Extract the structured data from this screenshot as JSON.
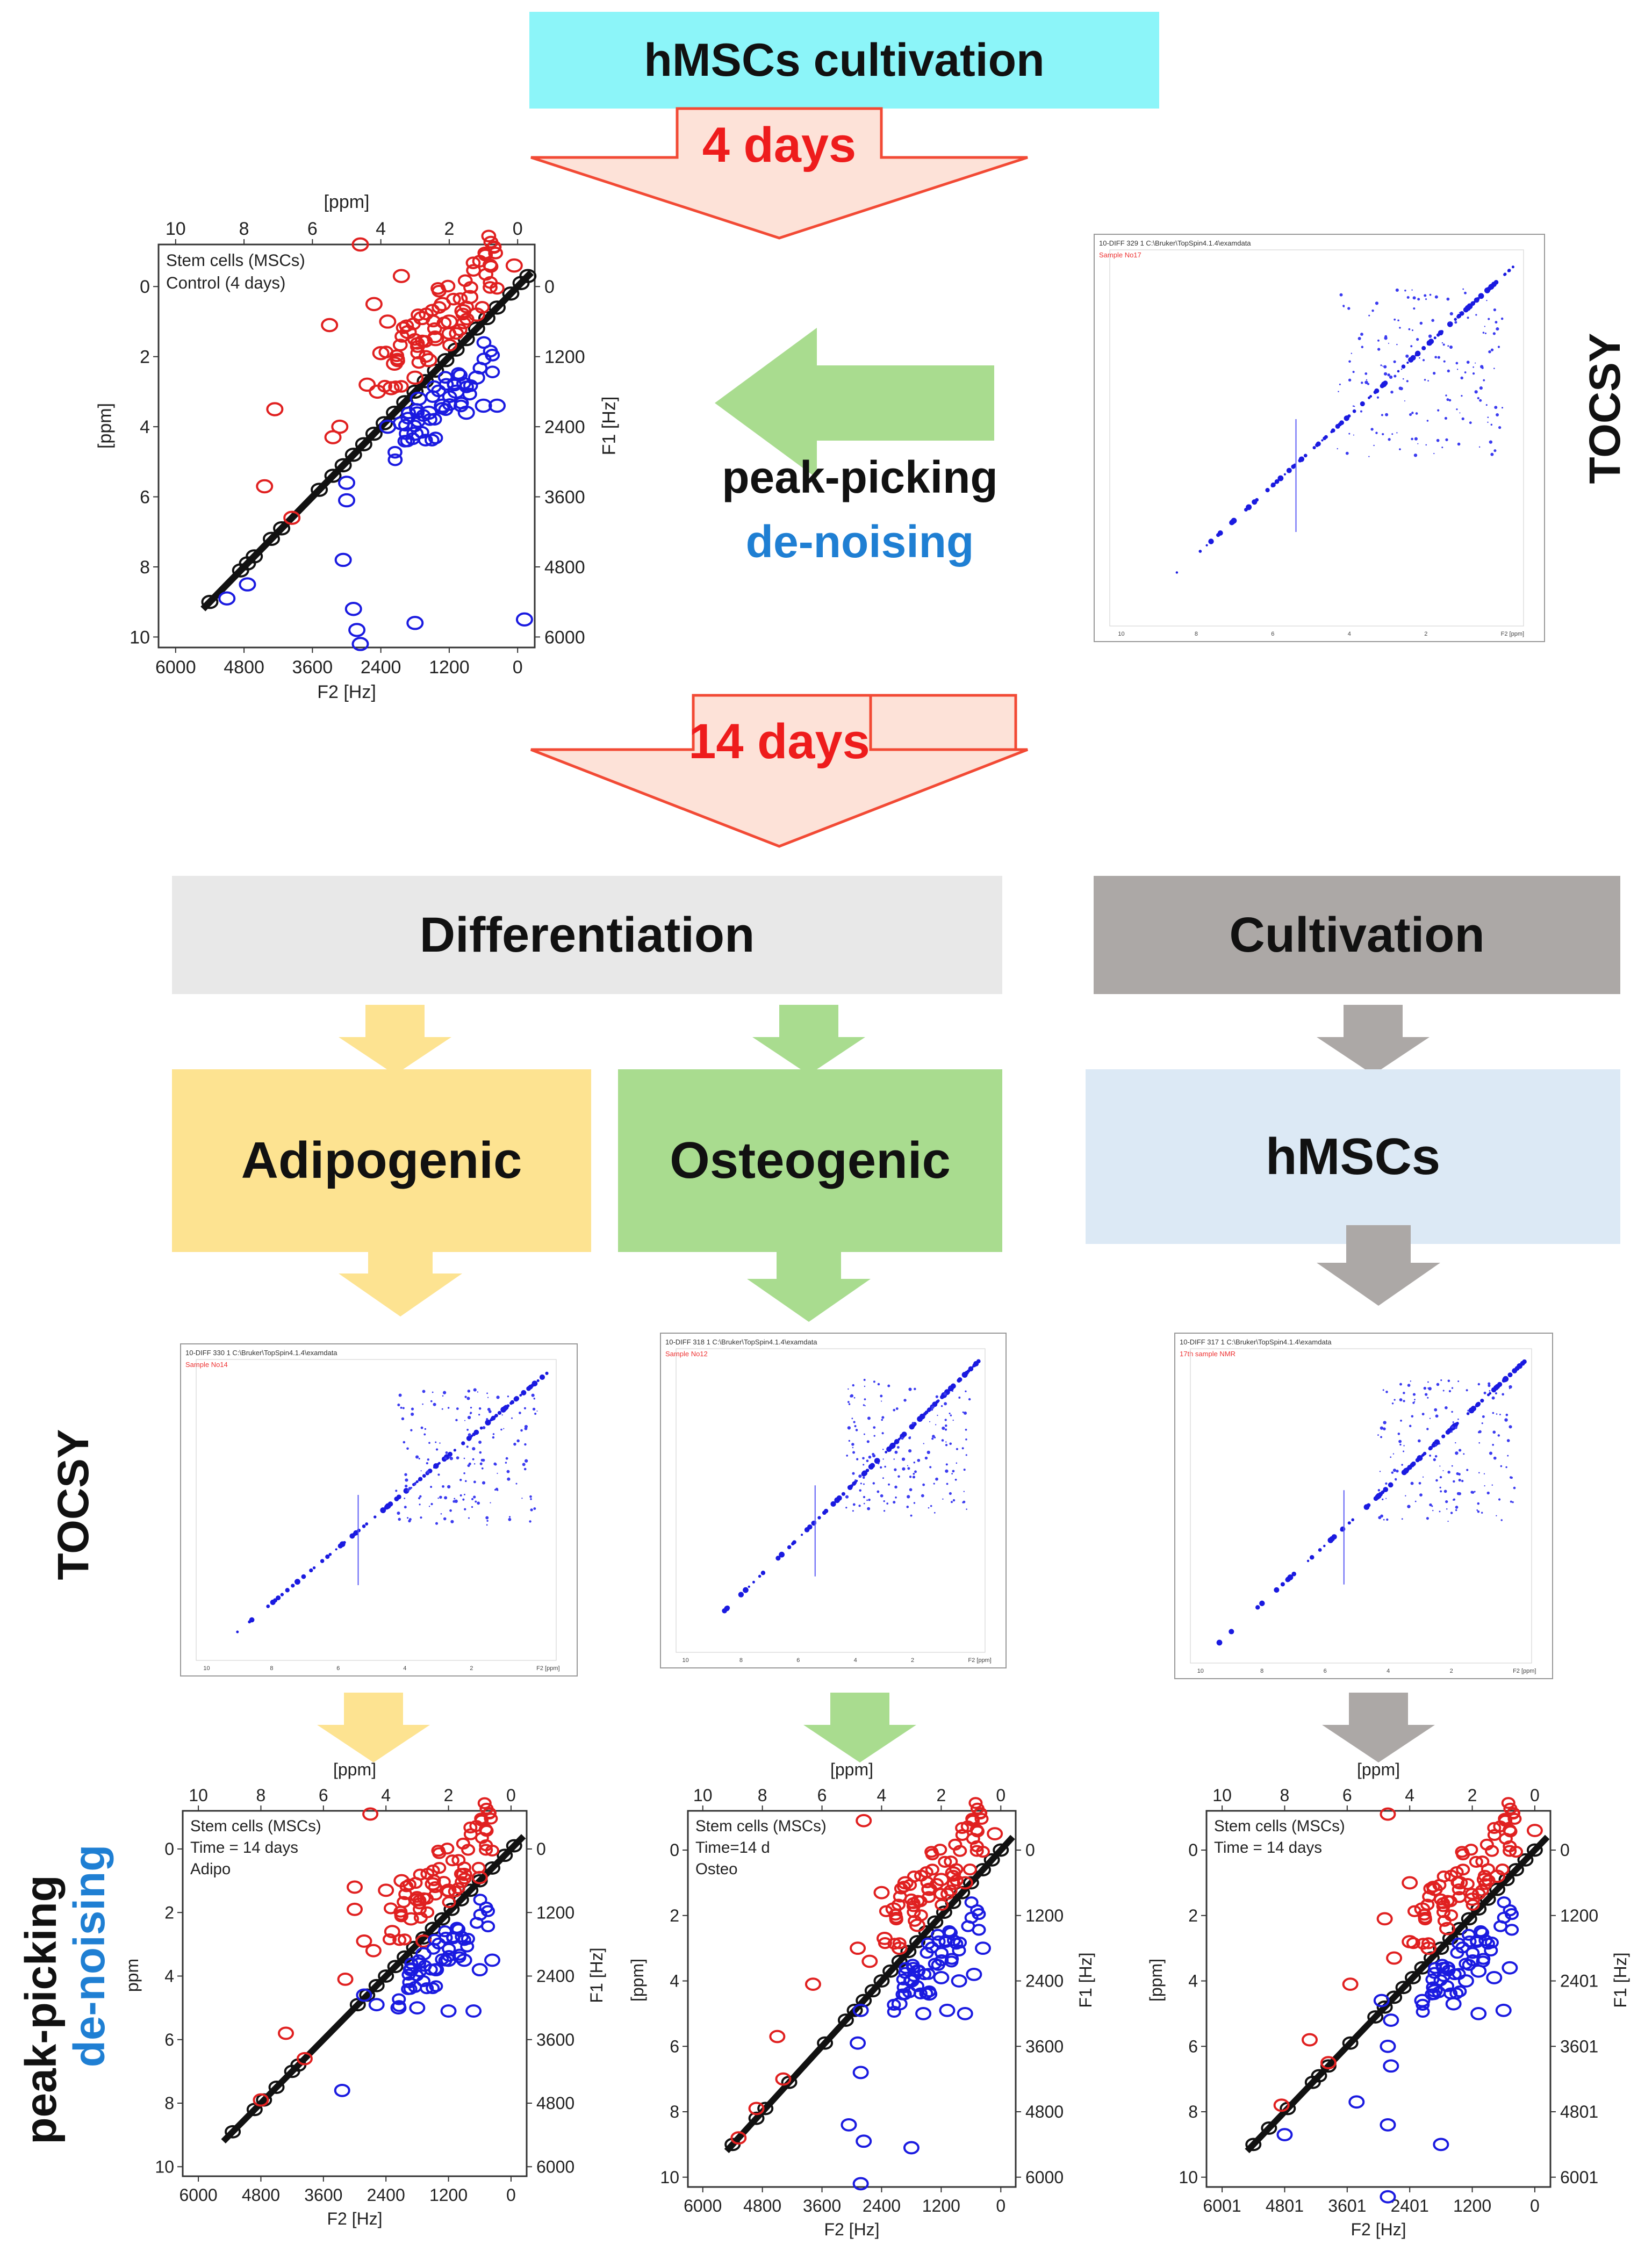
{
  "title": "hMSCs cultivation",
  "step1_days": "4 days",
  "step2_days": "14 days",
  "tocsy_label": "TOCSY",
  "peak_picking": "peak-picking",
  "denoising": "de-noising",
  "boxes": {
    "differentiation": "Differentiation",
    "cultivation": "Cultivation",
    "adipogenic": "Adipogenic",
    "osteogenic": "Osteogenic",
    "hmscs": "hMSCs"
  },
  "colors": {
    "title_bg": "#8cf5f9",
    "arrow_fill": "#fde2d8",
    "arrow_stroke": "#f24a35",
    "days_text": "#ee1c1c",
    "green_arrow": "#a9dc8f",
    "yellow": "#fde391",
    "green": "#a9dc8f",
    "grey": "#aca8a6",
    "light_grey": "#e8e8e8",
    "light_blue": "#dce9f5",
    "blue_text": "#1f7fd3",
    "red_peak": "#e02020",
    "blue_peak": "#1a1ae0",
    "black_peak": "#111111"
  },
  "tocsy_spectra": [
    {
      "header": "10-DIFF 329 1 C:\\Bruker\\TopSpin4.1.4\\examdata",
      "sample": "Sample No17"
    },
    {
      "header": "10-DIFF 330 1 C:\\Bruker\\TopSpin4.1.4\\examdata",
      "sample": "Sample No14"
    },
    {
      "header": "10-DIFF 318 1 C:\\Bruker\\TopSpin4.1.4\\examdata",
      "sample": "Sample No12"
    },
    {
      "header": "10-DIFF 317 1 C:\\Bruker\\TopSpin4.1.4\\examdata",
      "sample": "17th sample NMR"
    }
  ],
  "chart_data": [
    {
      "type": "scatter",
      "title": "Stem cells (MSCs)",
      "legend_lines": [
        "Stem cells (MSCs)",
        "Control (4 days)"
      ],
      "xlabel_top": "[ppm]",
      "xlabel_bottom": "F2 [Hz]",
      "ylabel_left": "[ppm]",
      "ylabel_right": "F1 [Hz]",
      "top_ticks": [
        "10",
        "8",
        "6",
        "4",
        "2",
        "0"
      ],
      "bottom_ticks": [
        "6000",
        "4800",
        "3600",
        "2400",
        "1200",
        "0"
      ],
      "left_ticks": [
        "0",
        "2",
        "4",
        "6",
        "8",
        "10"
      ],
      "right_ticks": [
        "0",
        "1200",
        "2400",
        "3600",
        "4800",
        "6000"
      ],
      "xlim": [
        10.5,
        -0.5
      ],
      "ylim": [
        -1.2,
        10.3
      ],
      "diagonal": [
        [
          9.0,
          9.0
        ],
        [
          8.1,
          8.1
        ],
        [
          7.9,
          7.9
        ],
        [
          7.7,
          7.7
        ],
        [
          7.2,
          7.2
        ],
        [
          6.9,
          6.9
        ],
        [
          5.8,
          5.8
        ],
        [
          5.4,
          5.4
        ],
        [
          5.1,
          5.1
        ],
        [
          4.8,
          4.8
        ],
        [
          4.5,
          4.5
        ],
        [
          4.2,
          4.2
        ],
        [
          3.9,
          3.9
        ],
        [
          3.6,
          3.6
        ],
        [
          3.3,
          3.3
        ],
        [
          3.0,
          3.0
        ],
        [
          2.7,
          2.7
        ],
        [
          2.4,
          2.4
        ],
        [
          2.1,
          2.1
        ],
        [
          1.8,
          1.8
        ],
        [
          1.5,
          1.5
        ],
        [
          1.2,
          1.2
        ],
        [
          0.9,
          0.9
        ],
        [
          0.6,
          0.6
        ],
        [
          0.2,
          0.2
        ],
        [
          -0.1,
          -0.1
        ],
        [
          -0.3,
          -0.3
        ]
      ],
      "red": [
        [
          4.6,
          -1.2
        ],
        [
          0.1,
          -0.6
        ],
        [
          4.2,
          0.5
        ],
        [
          3.4,
          -0.3
        ],
        [
          3.8,
          1.0
        ],
        [
          3.2,
          1.3
        ],
        [
          2.8,
          0.9
        ],
        [
          2.4,
          1.5
        ],
        [
          2.0,
          1.0
        ],
        [
          1.6,
          0.7
        ],
        [
          1.2,
          0.8
        ],
        [
          4.0,
          1.9
        ],
        [
          3.6,
          2.2
        ],
        [
          3.0,
          2.6
        ],
        [
          2.6,
          2.1
        ],
        [
          4.4,
          2.8
        ],
        [
          4.1,
          3.0
        ],
        [
          5.2,
          4.0
        ],
        [
          5.4,
          4.3
        ],
        [
          7.1,
          3.5
        ],
        [
          7.4,
          5.7
        ],
        [
          6.6,
          6.6
        ],
        [
          5.5,
          1.1
        ],
        [
          3.7,
          2.9
        ],
        [
          2.2,
          0.5
        ],
        [
          1.4,
          0.3
        ]
      ],
      "blue": [
        [
          5.0,
          5.6
        ],
        [
          5.0,
          6.1
        ],
        [
          5.1,
          7.8
        ],
        [
          1.2,
          2.6
        ],
        [
          1.0,
          3.4
        ],
        [
          0.6,
          3.4
        ],
        [
          1.8,
          3.0
        ],
        [
          2.2,
          3.4
        ],
        [
          2.6,
          3.6
        ],
        [
          3.0,
          4.2
        ],
        [
          3.4,
          3.9
        ],
        [
          3.8,
          4.0
        ],
        [
          2.9,
          3.2
        ],
        [
          1.5,
          3.6
        ],
        [
          4.8,
          9.2
        ],
        [
          4.7,
          9.8
        ],
        [
          4.6,
          10.2
        ],
        [
          3.0,
          9.6
        ],
        [
          -0.2,
          9.5
        ],
        [
          7.9,
          8.5
        ],
        [
          8.5,
          8.9
        ]
      ]
    },
    {
      "type": "scatter",
      "legend_lines": [
        "Stem cells (MSCs)",
        "Time = 14 days",
        "Adipo"
      ],
      "xlabel_top": "[ppm]",
      "xlabel_bottom": "F2 [Hz]",
      "ylabel_left": "ppm",
      "ylabel_right": "F1 [Hz]",
      "top_ticks": [
        "10",
        "8",
        "6",
        "4",
        "2",
        "0"
      ],
      "bottom_ticks": [
        "6000",
        "4800",
        "3600",
        "2400",
        "1200",
        "0"
      ],
      "left_ticks": [
        "0",
        "2",
        "4",
        "6",
        "8",
        "10"
      ],
      "right_ticks": [
        "0",
        "1200",
        "2400",
        "3600",
        "4800",
        "6000"
      ],
      "xlim": [
        10.5,
        -0.5
      ],
      "ylim": [
        -1.2,
        10.3
      ],
      "diagonal": [
        [
          8.9,
          8.9
        ],
        [
          8.2,
          8.2
        ],
        [
          7.9,
          7.9
        ],
        [
          7.5,
          7.5
        ],
        [
          7.0,
          7.0
        ],
        [
          6.8,
          6.8
        ],
        [
          4.9,
          4.9
        ],
        [
          4.6,
          4.6
        ],
        [
          4.3,
          4.3
        ],
        [
          4.0,
          4.0
        ],
        [
          3.7,
          3.7
        ],
        [
          3.4,
          3.4
        ],
        [
          3.1,
          3.1
        ],
        [
          2.8,
          2.8
        ],
        [
          2.5,
          2.5
        ],
        [
          2.2,
          2.2
        ],
        [
          1.9,
          1.9
        ],
        [
          1.6,
          1.6
        ],
        [
          1.3,
          1.3
        ],
        [
          1.0,
          1.0
        ],
        [
          0.6,
          0.6
        ],
        [
          0.2,
          0.2
        ],
        [
          -0.1,
          -0.1
        ]
      ],
      "red": [
        [
          4.5,
          -1.1
        ],
        [
          5.0,
          1.2
        ],
        [
          5.0,
          1.9
        ],
        [
          4.0,
          1.3
        ],
        [
          3.5,
          1.0
        ],
        [
          3.0,
          1.6
        ],
        [
          2.5,
          1.1
        ],
        [
          2.0,
          1.3
        ],
        [
          1.5,
          0.8
        ],
        [
          1.0,
          0.9
        ],
        [
          3.8,
          2.6
        ],
        [
          3.2,
          2.2
        ],
        [
          2.8,
          2.9
        ],
        [
          4.4,
          3.2
        ],
        [
          5.3,
          4.1
        ],
        [
          7.2,
          5.8
        ],
        [
          6.6,
          6.6
        ],
        [
          8.0,
          7.9
        ],
        [
          4.7,
          2.9
        ]
      ],
      "blue": [
        [
          4.7,
          4.6
        ],
        [
          5.4,
          7.6
        ],
        [
          2.4,
          3.8
        ],
        [
          2.0,
          3.5
        ],
        [
          1.5,
          3.5
        ],
        [
          1.0,
          3.8
        ],
        [
          0.6,
          3.5
        ],
        [
          2.8,
          3.3
        ],
        [
          3.2,
          3.8
        ],
        [
          3.6,
          5.0
        ],
        [
          3.0,
          5.0
        ],
        [
          2.0,
          5.1
        ],
        [
          1.2,
          5.1
        ],
        [
          4.3,
          4.9
        ]
      ]
    },
    {
      "type": "scatter",
      "legend_lines": [
        "Stem cells (MSCs)",
        "Time=14 d",
        "Osteo"
      ],
      "xlabel_top": "[ppm]",
      "xlabel_bottom": "F2 [Hz]",
      "ylabel_left": "[ppm]",
      "ylabel_right": "F1 [Hz]",
      "top_ticks": [
        "10",
        "8",
        "6",
        "4",
        "2",
        "0"
      ],
      "bottom_ticks": [
        "6000",
        "4800",
        "3600",
        "2400",
        "1200",
        "0"
      ],
      "left_ticks": [
        "0",
        "2",
        "4",
        "6",
        "8",
        "10"
      ],
      "right_ticks": [
        "0",
        "1200",
        "2400",
        "3600",
        "4800",
        "6000"
      ],
      "xlim": [
        10.5,
        -0.5
      ],
      "ylim": [
        -1.2,
        10.3
      ],
      "diagonal": [
        [
          9.0,
          9.0
        ],
        [
          8.2,
          8.2
        ],
        [
          7.9,
          7.9
        ],
        [
          7.1,
          7.1
        ],
        [
          5.9,
          5.9
        ],
        [
          5.2,
          5.2
        ],
        [
          4.9,
          4.9
        ],
        [
          4.6,
          4.6
        ],
        [
          4.3,
          4.3
        ],
        [
          4.0,
          4.0
        ],
        [
          3.7,
          3.7
        ],
        [
          3.4,
          3.4
        ],
        [
          3.1,
          3.1
        ],
        [
          2.8,
          2.8
        ],
        [
          2.5,
          2.5
        ],
        [
          2.2,
          2.2
        ],
        [
          1.9,
          1.9
        ],
        [
          1.6,
          1.6
        ],
        [
          1.3,
          1.3
        ],
        [
          1.0,
          1.0
        ],
        [
          0.6,
          0.6
        ],
        [
          0.3,
          0.3
        ],
        [
          0.0,
          0.0
        ]
      ],
      "red": [
        [
          4.6,
          -0.9
        ],
        [
          0.2,
          -0.5
        ],
        [
          4.0,
          1.3
        ],
        [
          3.6,
          1.8
        ],
        [
          3.2,
          1.0
        ],
        [
          2.8,
          2.3
        ],
        [
          2.4,
          1.2
        ],
        [
          2.0,
          0.9
        ],
        [
          1.6,
          0.7
        ],
        [
          1.2,
          1.0
        ],
        [
          3.9,
          2.7
        ],
        [
          3.4,
          3.0
        ],
        [
          4.4,
          3.4
        ],
        [
          6.3,
          4.1
        ],
        [
          7.5,
          5.7
        ],
        [
          7.3,
          7.0
        ],
        [
          8.8,
          8.8
        ],
        [
          8.2,
          7.9
        ],
        [
          4.8,
          3.0
        ]
      ],
      "blue": [
        [
          4.7,
          4.9
        ],
        [
          4.8,
          5.9
        ],
        [
          4.7,
          6.8
        ],
        [
          5.1,
          8.4
        ],
        [
          4.6,
          8.9
        ],
        [
          3.0,
          9.1
        ],
        [
          4.7,
          10.2
        ],
        [
          2.4,
          4.4
        ],
        [
          2.0,
          3.9
        ],
        [
          1.4,
          4.0
        ],
        [
          0.9,
          3.8
        ],
        [
          0.6,
          3.0
        ],
        [
          2.8,
          3.7
        ],
        [
          3.4,
          4.7
        ],
        [
          2.6,
          5.0
        ],
        [
          1.8,
          4.9
        ],
        [
          1.2,
          5.0
        ],
        [
          3.0,
          4.0
        ]
      ]
    },
    {
      "type": "scatter",
      "legend_lines": [
        "Stem cells (MSCs)",
        "Time = 14 days"
      ],
      "xlabel_top": "[ppm]",
      "xlabel_bottom": "F2 [Hz]",
      "ylabel_left": "[ppm]",
      "ylabel_right": "F1 [Hz]",
      "top_ticks": [
        "10",
        "8",
        "6",
        "4",
        "2",
        "0"
      ],
      "bottom_ticks": [
        "6001",
        "4801",
        "3601",
        "2401",
        "1200",
        "0"
      ],
      "left_ticks": [
        "0",
        "2",
        "4",
        "6",
        "8",
        "10"
      ],
      "right_ticks": [
        "0",
        "1200",
        "2401",
        "3601",
        "4801",
        "6001"
      ],
      "xlim": [
        10.5,
        -0.5
      ],
      "ylim": [
        -1.2,
        10.3
      ],
      "diagonal": [
        [
          9.0,
          9.0
        ],
        [
          8.5,
          8.5
        ],
        [
          7.9,
          7.9
        ],
        [
          7.1,
          7.1
        ],
        [
          6.9,
          6.9
        ],
        [
          6.6,
          6.6
        ],
        [
          5.9,
          5.9
        ],
        [
          5.1,
          5.1
        ],
        [
          4.8,
          4.8
        ],
        [
          4.5,
          4.5
        ],
        [
          4.2,
          4.2
        ],
        [
          3.9,
          3.9
        ],
        [
          3.6,
          3.6
        ],
        [
          3.3,
          3.3
        ],
        [
          3.0,
          3.0
        ],
        [
          2.7,
          2.7
        ],
        [
          2.4,
          2.4
        ],
        [
          2.1,
          2.1
        ],
        [
          1.8,
          1.8
        ],
        [
          1.5,
          1.5
        ],
        [
          1.2,
          1.2
        ],
        [
          0.9,
          0.9
        ],
        [
          0.6,
          0.6
        ],
        [
          0.3,
          0.3
        ],
        [
          0.0,
          0.0
        ]
      ],
      "red": [
        [
          4.7,
          -1.1
        ],
        [
          0.0,
          -0.6
        ],
        [
          4.0,
          1.0
        ],
        [
          3.6,
          1.8
        ],
        [
          3.2,
          1.2
        ],
        [
          2.8,
          2.4
        ],
        [
          2.4,
          1.0
        ],
        [
          2.0,
          1.5
        ],
        [
          1.6,
          0.9
        ],
        [
          1.2,
          0.8
        ],
        [
          4.0,
          2.8
        ],
        [
          3.4,
          3.0
        ],
        [
          4.5,
          3.3
        ],
        [
          5.9,
          4.1
        ],
        [
          7.2,
          5.8
        ],
        [
          6.6,
          6.5
        ],
        [
          8.1,
          7.8
        ],
        [
          4.8,
          2.1
        ]
      ],
      "blue": [
        [
          4.9,
          4.6
        ],
        [
          4.6,
          5.2
        ],
        [
          4.7,
          6.0
        ],
        [
          4.6,
          6.6
        ],
        [
          5.7,
          7.7
        ],
        [
          4.7,
          8.4
        ],
        [
          3.0,
          9.0
        ],
        [
          4.7,
          10.6
        ],
        [
          8.0,
          8.7
        ],
        [
          2.2,
          4.0
        ],
        [
          1.8,
          3.7
        ],
        [
          1.3,
          3.9
        ],
        [
          0.8,
          3.6
        ],
        [
          2.8,
          3.6
        ],
        [
          3.2,
          4.3
        ],
        [
          2.6,
          4.7
        ],
        [
          1.8,
          5.0
        ],
        [
          1.0,
          4.9
        ],
        [
          3.6,
          4.6
        ]
      ]
    }
  ]
}
